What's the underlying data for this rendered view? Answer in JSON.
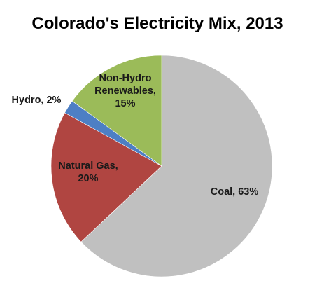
{
  "chart_data": {
    "type": "pie",
    "title": "Colorado's Electricity Mix, 2013",
    "categories": [
      "Coal",
      "Natural Gas",
      "Hydro",
      "Non-Hydro Renewables"
    ],
    "values": [
      63,
      20,
      2,
      15
    ],
    "labels": [
      {
        "lines": [
          "Coal, 63%"
        ]
      },
      {
        "lines": [
          "Natural Gas,",
          "20%"
        ]
      },
      {
        "lines": [
          "Hydro, 2%"
        ]
      },
      {
        "lines": [
          "Non-Hydro",
          "Renewables,",
          "15%"
        ]
      }
    ],
    "colors": [
      "#c0c0c0",
      "#b04541",
      "#4d7fc4",
      "#9bbb59"
    ],
    "legend": "none"
  }
}
